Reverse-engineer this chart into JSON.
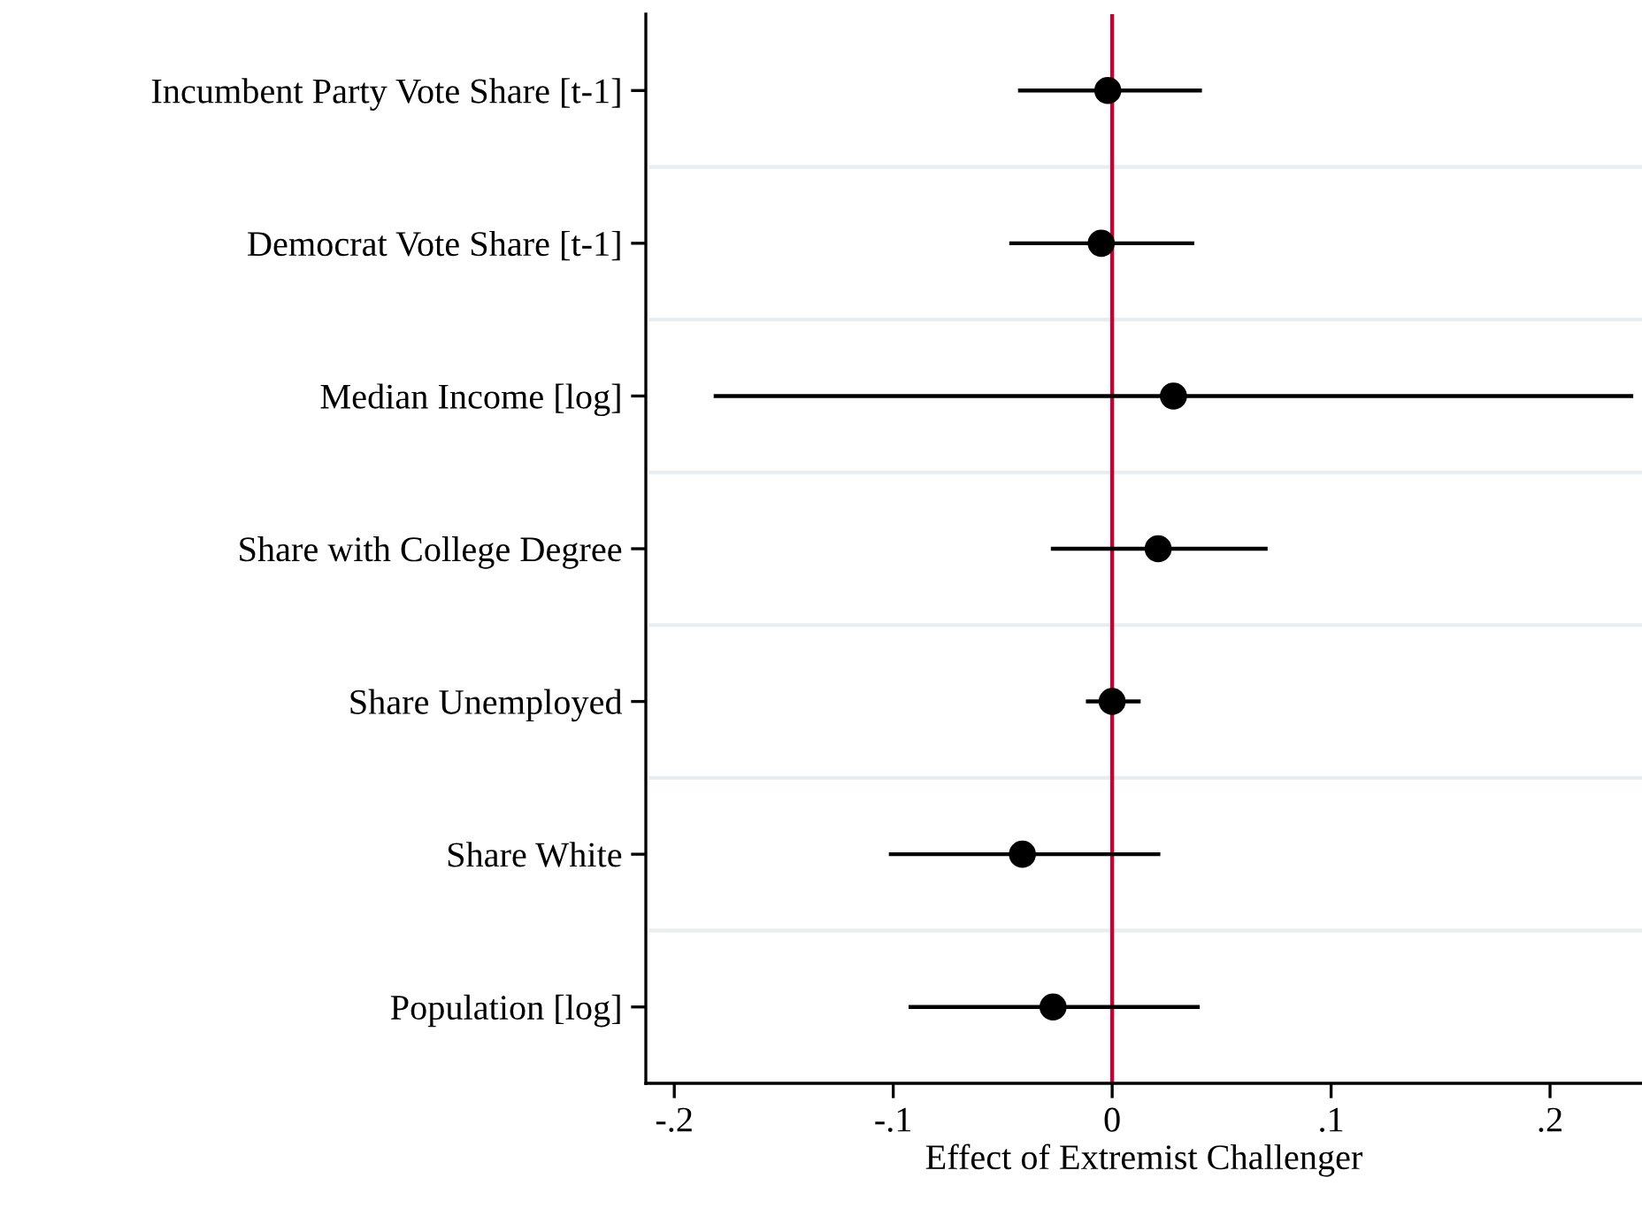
{
  "chart_data": {
    "type": "scatter",
    "orientation": "horizontal",
    "xlabel": "Effect of Extremist Challenger",
    "categories": [
      "Incumbent Party Vote Share [t-1]",
      "Democrat Vote Share [t-1]",
      "Median Income [log]",
      "Share with College Degree",
      "Share Unemployed",
      "Share White",
      "Population [log]"
    ],
    "values": [
      -0.002,
      -0.005,
      0.028,
      0.021,
      0.0,
      -0.041,
      -0.027
    ],
    "errors": [
      [
        -0.043,
        0.041
      ],
      [
        -0.047,
        0.0375
      ],
      [
        -0.182,
        0.238
      ],
      [
        -0.028,
        0.071
      ],
      [
        -0.012,
        0.013
      ],
      [
        -0.102,
        0.022
      ],
      [
        -0.093,
        0.04
      ]
    ],
    "color": "#000000",
    "marker": "circle",
    "grid": "y",
    "xlim": [
      -0.213,
      0.242
    ],
    "xticks": [
      {
        "value": -0.2,
        "label": "-.2"
      },
      {
        "value": -0.1,
        "label": "-.1"
      },
      0,
      {
        "value": 0.1,
        "label": ".1"
      },
      {
        "value": 0.2,
        "label": ".2"
      }
    ],
    "ref_lines": [
      {
        "axis": "x",
        "value": 0,
        "label": null,
        "color": "#c10534"
      }
    ]
  }
}
